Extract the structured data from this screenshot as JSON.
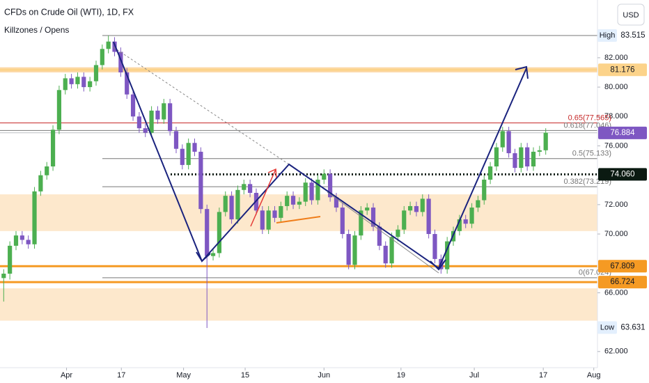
{
  "chart_data": {
    "type": "candlestick",
    "title": "CFDs on Crude Oil (WTI), 1D, FX",
    "subtitle": "Killzones / Opens",
    "currency": "USD",
    "up_color": "#4caf50",
    "down_color": "#7e57c2",
    "open": [
      67.0,
      67.3,
      69.2,
      69.9,
      69.6,
      69.3,
      72.9,
      74.0,
      74.6,
      77.1,
      79.8,
      80.6,
      80.2,
      80.7,
      80.0,
      80.4,
      81.5,
      82.6,
      83.1,
      82.4,
      81.0,
      79.5,
      78.0,
      77.2,
      76.9,
      78.4,
      77.8,
      78.9,
      77.0,
      75.8,
      74.7,
      76.2,
      75.6,
      71.7,
      68.5,
      68.7,
      71.5,
      72.6,
      71.0,
      73.0,
      73.4,
      72.8,
      71.6,
      70.3,
      71.6,
      71.1,
      71.9,
      72.6,
      72.0,
      72.2,
      73.5,
      72.3,
      73.7,
      74.1,
      72.5,
      71.8,
      70.0,
      67.9,
      69.9,
      71.6,
      71.8,
      70.5,
      69.2,
      68.0,
      69.8,
      70.3,
      71.6,
      71.9,
      71.5,
      72.4,
      70.0,
      68.3,
      67.6,
      69.5,
      70.2,
      71.0,
      70.7,
      71.8,
      72.3,
      73.7,
      74.6,
      75.9,
      77.0,
      75.5,
      74.5,
      75.9,
      74.6,
      75.6,
      75.7
    ],
    "high": [
      67.6,
      69.5,
      70.2,
      70.2,
      69.9,
      73.2,
      74.3,
      74.9,
      77.4,
      80.1,
      80.9,
      80.9,
      81.0,
      81.0,
      80.7,
      81.8,
      82.9,
      83.5,
      83.4,
      82.7,
      81.3,
      79.8,
      78.3,
      77.5,
      78.7,
      78.7,
      79.2,
      79.2,
      77.3,
      76.1,
      76.5,
      76.5,
      75.9,
      72.0,
      69.0,
      71.8,
      72.9,
      72.9,
      73.3,
      73.7,
      73.7,
      73.1,
      71.9,
      71.9,
      71.9,
      72.2,
      72.9,
      72.9,
      72.5,
      73.8,
      73.8,
      74.0,
      74.4,
      74.4,
      72.8,
      72.1,
      70.3,
      70.2,
      71.9,
      72.1,
      72.1,
      70.8,
      69.5,
      70.1,
      70.6,
      71.9,
      72.2,
      72.2,
      72.7,
      72.7,
      70.3,
      68.6,
      69.8,
      70.5,
      71.3,
      71.3,
      72.1,
      72.6,
      74.0,
      74.9,
      76.2,
      77.3,
      77.3,
      75.8,
      76.2,
      76.2,
      75.9,
      76.0,
      77.2
    ],
    "low": [
      65.4,
      66.9,
      68.9,
      69.3,
      69.0,
      69.0,
      72.6,
      73.7,
      74.3,
      76.8,
      79.5,
      79.9,
      79.9,
      79.7,
      79.7,
      80.1,
      81.2,
      82.3,
      82.1,
      80.7,
      79.2,
      77.7,
      76.9,
      76.6,
      76.6,
      77.5,
      77.5,
      76.7,
      75.5,
      74.4,
      74.4,
      75.3,
      71.4,
      63.6,
      68.2,
      68.4,
      71.2,
      70.7,
      70.7,
      72.7,
      72.5,
      71.3,
      70.0,
      70.0,
      70.8,
      70.8,
      71.6,
      71.7,
      71.7,
      71.9,
      72.0,
      72.0,
      73.4,
      72.2,
      71.5,
      69.7,
      67.6,
      67.6,
      69.6,
      71.3,
      70.2,
      68.9,
      67.7,
      67.7,
      69.5,
      70.0,
      71.3,
      71.2,
      71.2,
      69.7,
      68.0,
      67.3,
      67.3,
      69.2,
      69.9,
      70.4,
      70.4,
      71.5,
      72.0,
      73.4,
      74.3,
      75.6,
      75.2,
      74.2,
      74.2,
      74.3,
      74.3,
      75.3,
      75.4
    ],
    "close": [
      67.3,
      69.2,
      69.9,
      69.6,
      69.3,
      72.9,
      74.0,
      74.6,
      77.1,
      79.8,
      80.6,
      80.2,
      80.7,
      80.0,
      80.4,
      81.5,
      82.6,
      83.1,
      82.4,
      81.0,
      79.5,
      78.0,
      77.2,
      76.9,
      78.4,
      77.8,
      78.9,
      77.0,
      75.8,
      74.7,
      76.2,
      75.6,
      71.7,
      68.5,
      68.7,
      71.5,
      72.6,
      71.0,
      73.0,
      73.4,
      72.8,
      71.6,
      70.3,
      71.6,
      71.1,
      71.9,
      72.6,
      72.0,
      72.2,
      73.5,
      72.3,
      73.7,
      74.1,
      72.5,
      71.8,
      70.0,
      67.9,
      69.9,
      71.6,
      71.8,
      70.5,
      69.2,
      68.0,
      69.8,
      70.3,
      71.6,
      71.9,
      71.5,
      72.4,
      70.0,
      68.3,
      67.6,
      69.5,
      70.2,
      71.0,
      70.7,
      71.8,
      72.3,
      73.7,
      74.6,
      75.9,
      77.0,
      75.5,
      74.5,
      75.9,
      74.6,
      75.6,
      75.7,
      76.9
    ],
    "xlim": [
      -0.6,
      96.4
    ],
    "xticks": [
      {
        "value": 10.2,
        "label": "Apr"
      },
      {
        "value": 19.1,
        "label": "17"
      },
      {
        "value": 29.2,
        "label": "May"
      },
      {
        "value": 39.2,
        "label": "15"
      },
      {
        "value": 52,
        "label": "Jun"
      },
      {
        "value": 64.5,
        "label": "19"
      },
      {
        "value": 76.4,
        "label": "Jul"
      },
      {
        "value": 87.6,
        "label": "17"
      },
      {
        "value": 95.8,
        "label": "Aug"
      }
    ],
    "ylim": [
      60.9,
      85.93
    ],
    "yticks": [
      {
        "value": 82,
        "label": "82.000"
      },
      {
        "value": 80,
        "label": "80.000"
      },
      {
        "value": 78,
        "label": "78.000"
      },
      {
        "value": 76,
        "label": "76.000"
      },
      {
        "value": 72,
        "label": "72.000"
      },
      {
        "value": 70,
        "label": "70.000"
      },
      {
        "value": 66,
        "label": "66.000"
      },
      {
        "value": 62,
        "label": "62.000"
      }
    ],
    "zones": [
      {
        "from": 81.0,
        "to": 81.35,
        "color": "#fcd9a8"
      },
      {
        "from": 70.2,
        "to": 72.7,
        "color": "#fde8cc"
      },
      {
        "from": 64.1,
        "to": 66.3,
        "color": "#fde8cc"
      }
    ],
    "levels": [
      {
        "label": "0.65(77.565)",
        "value": 77.565,
        "color": "#c62828"
      },
      {
        "label": "0.618(77.046)",
        "value": 77.046,
        "color": "#777777"
      },
      {
        "label": "0.5(75.133)",
        "value": 75.133,
        "color": "#777777"
      },
      {
        "label": "0.382(73.219)",
        "value": 73.219,
        "color": "#777777"
      },
      {
        "label": "0(67.024)",
        "value": 67.024,
        "color": "#777777"
      }
    ],
    "price_tags": [
      {
        "tag": "High",
        "value": 83.515,
        "bg": "#ffffff",
        "fg": "#131722"
      },
      {
        "value": 81.176,
        "bg": "#fcd38a",
        "fg": "#131722"
      },
      {
        "value": 76.884,
        "bg": "#7e57c2",
        "fg": "#ffffff"
      },
      {
        "value": 74.06,
        "label": "74.060",
        "bg": "#0b1a12",
        "fg": "#ffffff"
      },
      {
        "value": 67.809,
        "bg": "#f59a23",
        "fg": "#131722"
      },
      {
        "value": 66.724,
        "bg": "#f59a23",
        "fg": "#131722"
      },
      {
        "tag": "Low",
        "value": 63.631,
        "bg": "#ffffff",
        "fg": "#131722"
      }
    ]
  }
}
